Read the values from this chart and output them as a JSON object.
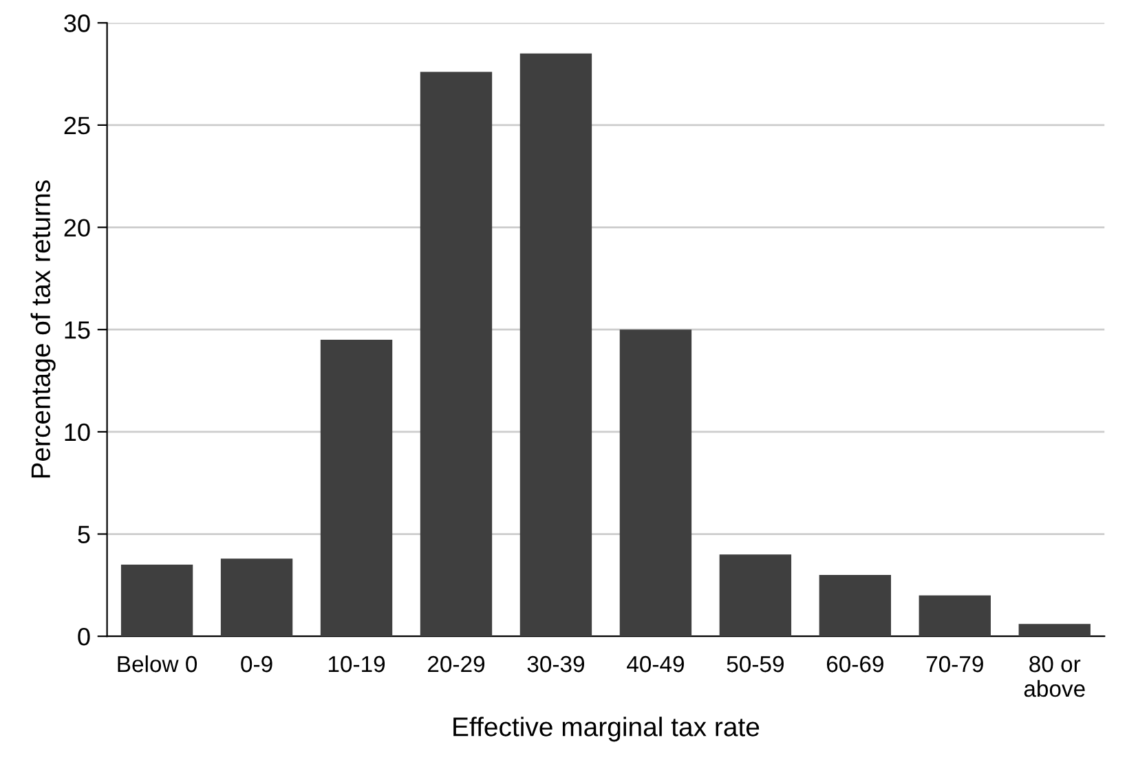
{
  "chart_data": {
    "type": "bar",
    "xlabel": "Effective marginal tax rate",
    "ylabel": "Percentage of tax returns",
    "categories": [
      "Below 0",
      "0-9",
      "10-19",
      "20-29",
      "30-39",
      "40-49",
      "50-59",
      "60-69",
      "70-79",
      "80 or\nabove"
    ],
    "values": [
      3.5,
      3.8,
      14.5,
      27.6,
      28.5,
      15.0,
      4.0,
      3.0,
      2.0,
      0.6
    ],
    "color": "#3f3f3f",
    "ylim": [
      0,
      30
    ],
    "yticks": [
      0,
      5,
      10,
      15,
      20,
      25,
      30
    ],
    "grid": "y"
  }
}
